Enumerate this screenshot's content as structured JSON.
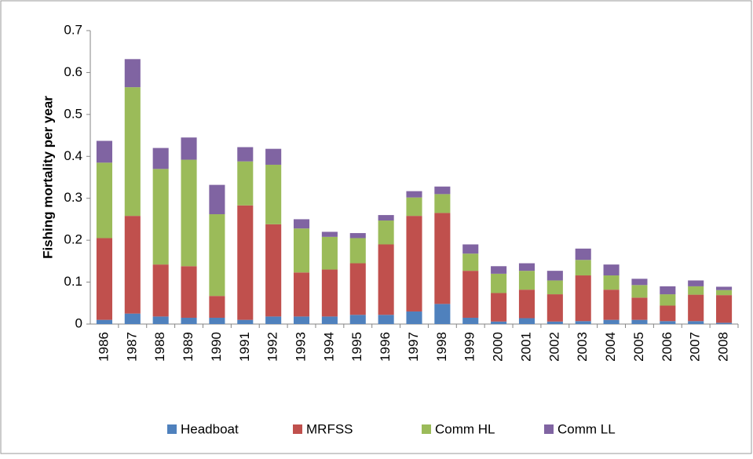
{
  "chart_data": {
    "type": "stacked-bar",
    "y_label": "Fishing mortality per year",
    "categories": [
      "1986",
      "1987",
      "1988",
      "1989",
      "1990",
      "1991",
      "1992",
      "1993",
      "1994",
      "1995",
      "1996",
      "1997",
      "1998",
      "1999",
      "2000",
      "2001",
      "2002",
      "2003",
      "2004",
      "2005",
      "2006",
      "2007",
      "2008"
    ],
    "series": [
      {
        "name": "Headboat",
        "color": "#4f81bd",
        "values": [
          0.01,
          0.025,
          0.018,
          0.015,
          0.015,
          0.01,
          0.018,
          0.018,
          0.018,
          0.022,
          0.022,
          0.03,
          0.048,
          0.015,
          0.006,
          0.014,
          0.006,
          0.007,
          0.01,
          0.01,
          0.007,
          0.007,
          0.003
        ]
      },
      {
        "name": "MRFSS",
        "color": "#c0504d",
        "values": [
          0.195,
          0.233,
          0.124,
          0.123,
          0.052,
          0.273,
          0.22,
          0.105,
          0.112,
          0.123,
          0.168,
          0.228,
          0.217,
          0.112,
          0.068,
          0.068,
          0.065,
          0.109,
          0.072,
          0.053,
          0.037,
          0.063,
          0.066
        ]
      },
      {
        "name": "Comm HL",
        "color": "#9bbb59",
        "values": [
          0.18,
          0.307,
          0.228,
          0.254,
          0.195,
          0.105,
          0.142,
          0.105,
          0.078,
          0.06,
          0.057,
          0.044,
          0.045,
          0.041,
          0.046,
          0.045,
          0.033,
          0.037,
          0.034,
          0.03,
          0.027,
          0.02,
          0.012
        ]
      },
      {
        "name": "Comm LL",
        "color": "#8064a2",
        "values": [
          0.052,
          0.067,
          0.05,
          0.053,
          0.07,
          0.034,
          0.038,
          0.022,
          0.012,
          0.012,
          0.013,
          0.015,
          0.018,
          0.022,
          0.018,
          0.018,
          0.023,
          0.027,
          0.026,
          0.015,
          0.019,
          0.014,
          0.008
        ]
      }
    ],
    "ylim": [
      0,
      0.7
    ],
    "yticks": [
      0,
      0.1,
      0.2,
      0.3,
      0.4,
      0.5,
      0.6,
      0.7
    ],
    "grid": false
  }
}
